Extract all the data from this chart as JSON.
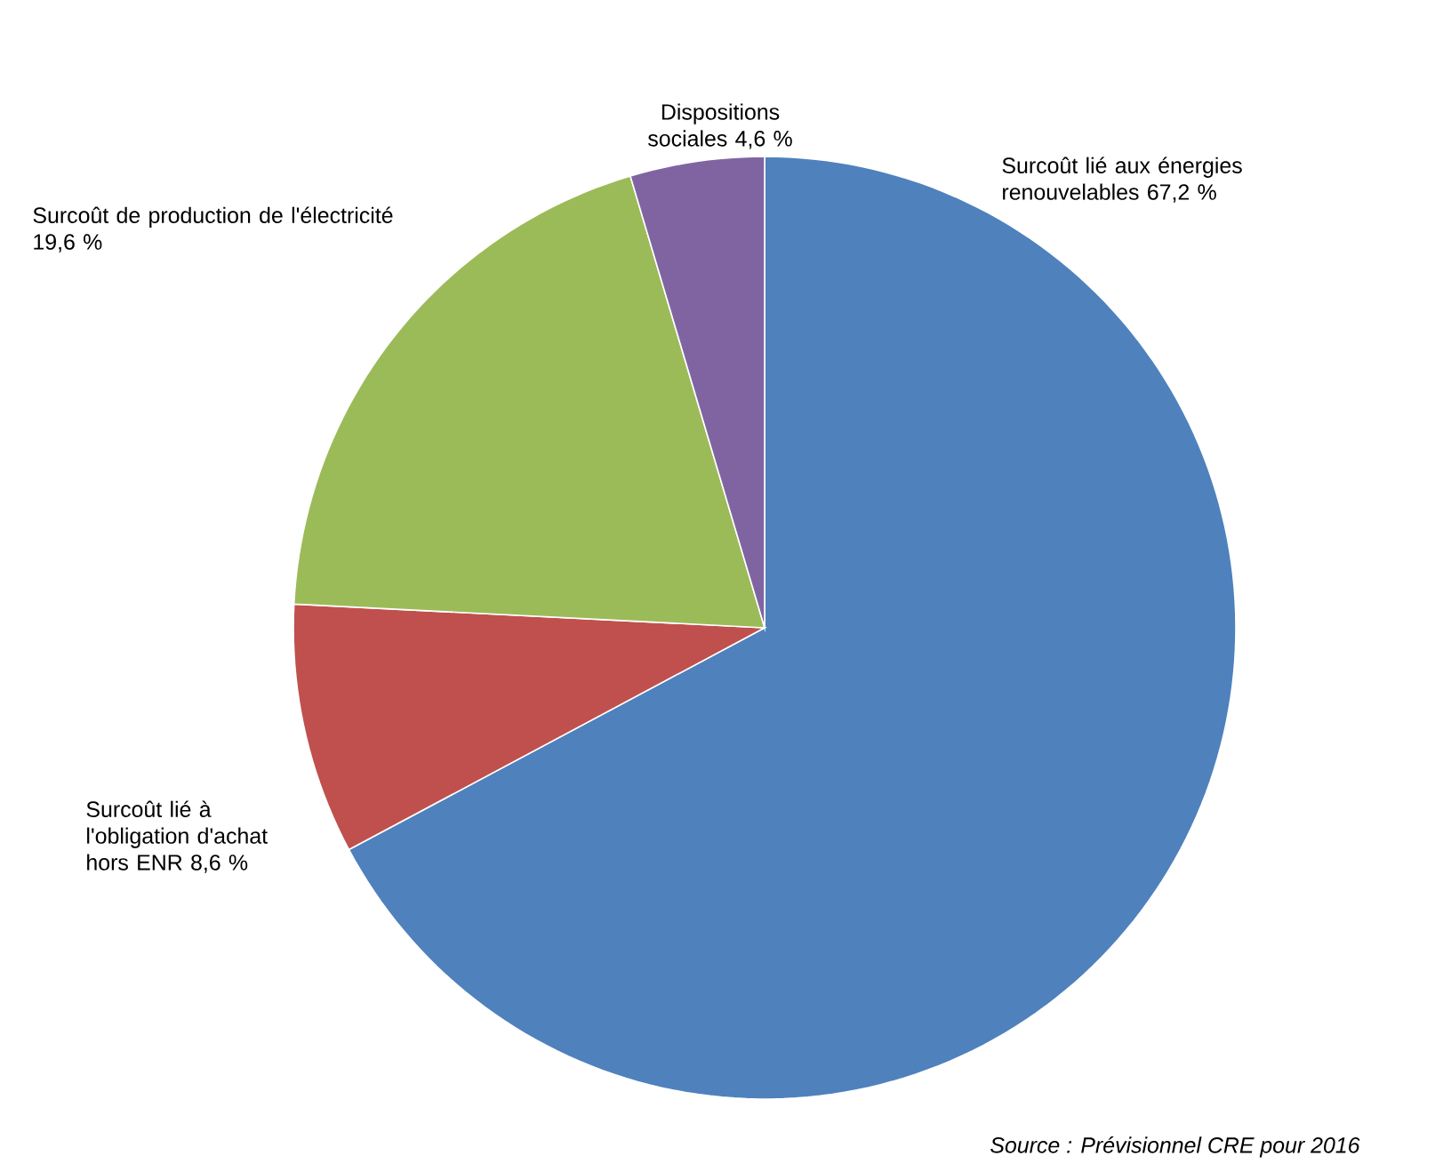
{
  "chart_data": {
    "type": "pie",
    "categories": [
      "Surcoût lié aux énergies renouvelables",
      "Surcoût lié à l'obligation d'achat hors ENR",
      "Surcoût de production de l'électricité",
      "Dispositions sociales"
    ],
    "values": [
      67.2,
      8.6,
      19.6,
      4.6
    ],
    "value_labels": [
      "67,2 %",
      "8,6 %",
      "19,6 %",
      "4,6 %"
    ],
    "colors": [
      "#4f81bd",
      "#c0504d",
      "#9bbb59",
      "#8064a2"
    ],
    "annotations": [
      "Source : Prévisionnel CRE pour 2016"
    ]
  }
}
